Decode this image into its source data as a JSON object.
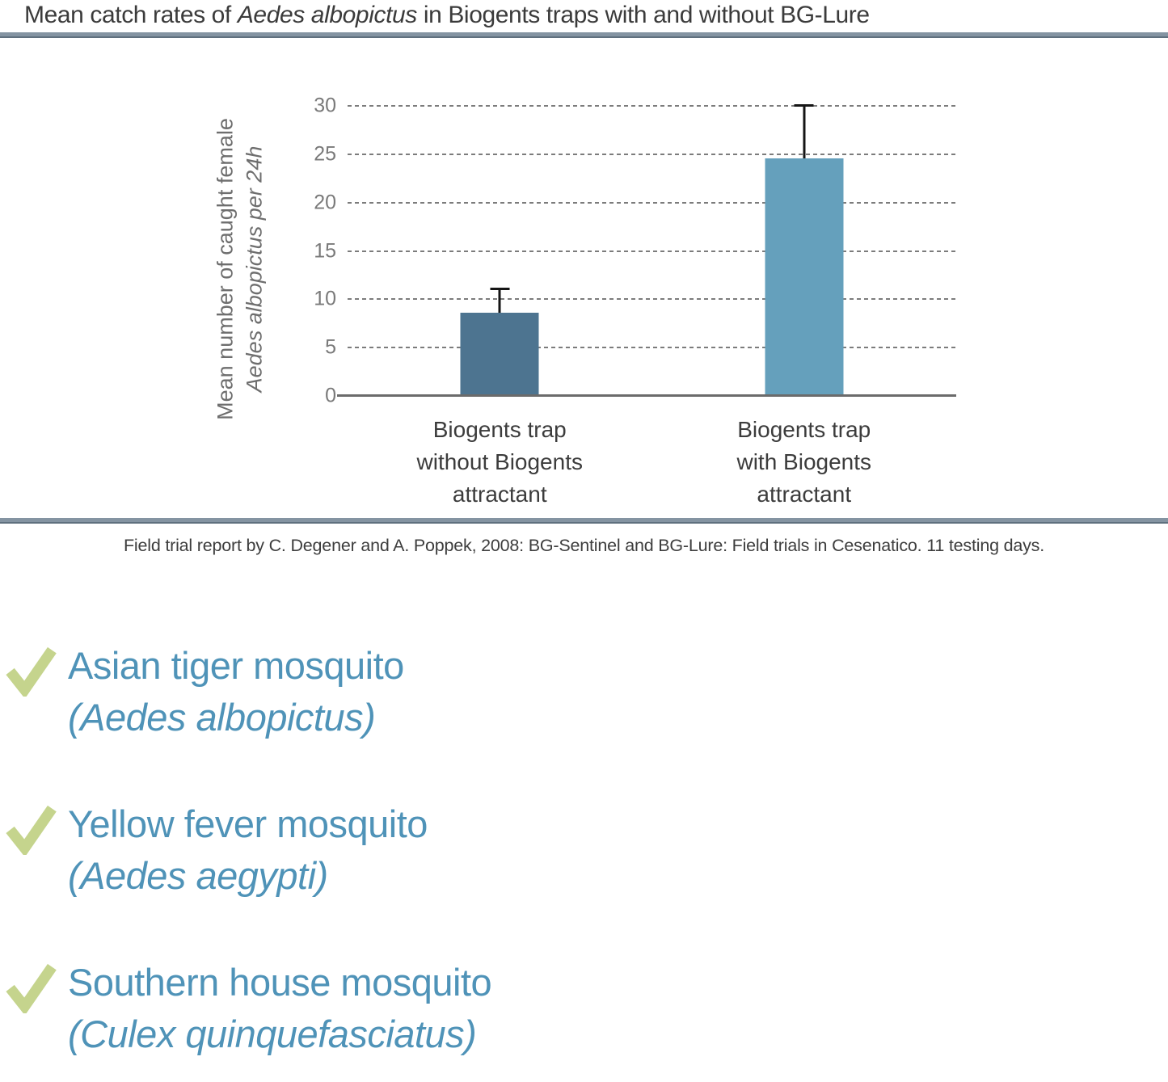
{
  "title": {
    "pre": "Mean catch rates of ",
    "italic": "Aedes albopictus",
    "post": " in Biogents traps with and without BG-Lure"
  },
  "chart_data": {
    "type": "bar",
    "ylabel_line1": "Mean number of caught female",
    "ylabel_line2": "Aedes albopictus per 24h",
    "yticks": [
      0,
      5,
      10,
      15,
      20,
      25,
      30
    ],
    "ylim": [
      0,
      30
    ],
    "grid": "horizontal dashed",
    "legend": "none",
    "categories": [
      {
        "lines": [
          "Biogents trap",
          "without Biogents",
          "attractant"
        ]
      },
      {
        "lines": [
          "Biogents trap",
          "with Biogents",
          "attractant"
        ]
      }
    ],
    "values": [
      8.6,
      24.6
    ],
    "error_upper": [
      11.2,
      30.2
    ],
    "bar_colors": [
      "#4d7490",
      "#65a0bc"
    ]
  },
  "source": "Field trial report by C. Degener and A. Poppek, 2008: BG-Sentinel and BG-Lure: Field trials in Cesenatico. 11 testing days.",
  "checklist": [
    {
      "common": "Asian tiger mosquito",
      "latin": "(Aedes albopictus)"
    },
    {
      "common": "Yellow fever mosquito",
      "latin": "(Aedes aegypti)"
    },
    {
      "common": "Southern house mosquito",
      "latin": "(Culex quinquefasciatus)"
    }
  ],
  "colors": {
    "accent_blue_text": "#4f93b8",
    "check_green": "#c5d48d",
    "divider": "#8494a2",
    "bar_dark": "#4d7490",
    "bar_light": "#65a0bc"
  }
}
